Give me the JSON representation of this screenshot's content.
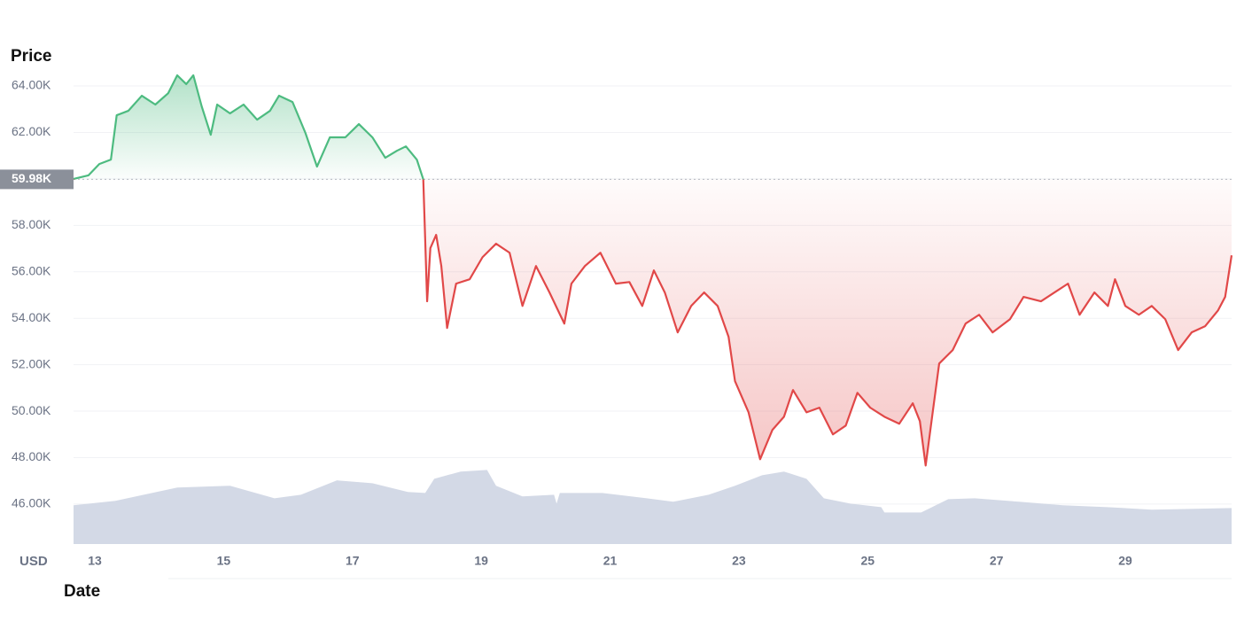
{
  "chart_data": {
    "type": "line",
    "y_label": "Price",
    "x_label": "Date",
    "currency": "USD",
    "xlim": [
      12.67,
      30.65
    ],
    "xticks": [
      13,
      15,
      17,
      19,
      21,
      23,
      25,
      27,
      29
    ],
    "ylim": [
      44280,
      64650
    ],
    "yticks": [
      {
        "value": 46000,
        "label": "46.00K"
      },
      {
        "value": 48000,
        "label": "48.00K"
      },
      {
        "value": 50000,
        "label": "50.00K"
      },
      {
        "value": 52000,
        "label": "52.00K"
      },
      {
        "value": 54000,
        "label": "54.00K"
      },
      {
        "value": 56000,
        "label": "56.00K"
      },
      {
        "value": 58000,
        "label": "58.00K"
      },
      {
        "value": 60000,
        "label": "60.00K"
      },
      {
        "value": 62000,
        "label": "62.00K"
      },
      {
        "value": 64000,
        "label": "64.00K"
      }
    ],
    "grid": true,
    "reference": {
      "value": 59980,
      "label": "59.98K",
      "color_above": "#4dbb80",
      "color_below": "#e14848"
    },
    "x": [
      12.67,
      12.9,
      13.07,
      13.25,
      13.34,
      13.52,
      13.73,
      13.94,
      14.14,
      14.28,
      14.42,
      14.53,
      14.66,
      14.8,
      14.9,
      15.1,
      15.31,
      15.52,
      15.72,
      15.86,
      16.07,
      16.27,
      16.45,
      16.65,
      16.89,
      17.1,
      17.31,
      17.51,
      17.69,
      17.83,
      18.0,
      18.1,
      18.16,
      18.21,
      18.3,
      18.38,
      18.47,
      18.61,
      18.82,
      19.02,
      19.23,
      19.44,
      19.64,
      19.85,
      20.06,
      20.29,
      20.4,
      20.61,
      20.85,
      21.09,
      21.3,
      21.5,
      21.68,
      21.85,
      22.05,
      22.26,
      22.46,
      22.67,
      22.84,
      22.94,
      23.15,
      23.33,
      23.52,
      23.7,
      23.84,
      24.05,
      24.25,
      24.46,
      24.66,
      24.84,
      25.04,
      25.26,
      25.49,
      25.7,
      25.81,
      25.9,
      26.0,
      26.11,
      26.32,
      26.52,
      26.73,
      26.94,
      27.21,
      27.42,
      27.69,
      27.9,
      28.11,
      28.29,
      28.52,
      28.73,
      28.84,
      29.0,
      29.21,
      29.41,
      29.62,
      29.82,
      30.03,
      30.24,
      30.44,
      30.55,
      30.65
    ],
    "series": [
      {
        "values": [
          60000,
          60150,
          60640,
          60830,
          62740,
          62930,
          63580,
          63200,
          63690,
          64460,
          64080,
          64460,
          63120,
          61900,
          63200,
          62820,
          63200,
          62550,
          62930,
          63580,
          63310,
          61980,
          60530,
          61790,
          61790,
          62360,
          61790,
          60910,
          61210,
          61400,
          60830,
          59980,
          54730,
          57020,
          57590,
          56250,
          53580,
          55490,
          55680,
          56630,
          57210,
          56820,
          54530,
          56250,
          55110,
          53770,
          55490,
          56250,
          56820,
          55490,
          55560,
          54530,
          56060,
          55110,
          53390,
          54530,
          55110,
          54530,
          53200,
          51290,
          49950,
          47930,
          49190,
          49760,
          50910,
          49950,
          50150,
          49000,
          49380,
          50790,
          50150,
          49760,
          49460,
          50340,
          49570,
          47660,
          49760,
          52050,
          52630,
          53770,
          54150,
          53390,
          53960,
          54920,
          54730,
          55110,
          55490,
          54150,
          55110,
          54530,
          55680,
          54530,
          54150,
          54530,
          53960,
          52630,
          53390,
          53660,
          54340,
          54920,
          56710
        ]
      }
    ],
    "volume": {
      "color": "#d3d9e6",
      "x": [
        12.67,
        13.32,
        14.28,
        15.1,
        15.79,
        16.2,
        16.76,
        17.31,
        17.86,
        18.13,
        18.27,
        18.68,
        19.09,
        19.23,
        19.64,
        20.13,
        20.17,
        20.22,
        20.88,
        21.57,
        21.98,
        22.53,
        22.94,
        23.36,
        23.7,
        24.05,
        24.32,
        24.73,
        25.21,
        25.26,
        25.83,
        26.25,
        26.66,
        27.35,
        28.03,
        28.72,
        29.41,
        30.65
      ],
      "values": [
        45950,
        46140,
        46710,
        46790,
        46250,
        46400,
        47020,
        46900,
        46520,
        46480,
        47090,
        47400,
        47470,
        46790,
        46330,
        46400,
        46020,
        46480,
        46480,
        46250,
        46100,
        46400,
        46790,
        47240,
        47400,
        47090,
        46250,
        46020,
        45870,
        45640,
        45640,
        46210,
        46250,
        46100,
        45950,
        45870,
        45760,
        45830
      ]
    }
  }
}
